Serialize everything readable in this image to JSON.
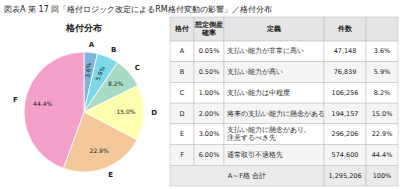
{
  "title": "図表A  第 17 回「格付ロジック改定によるRM格付変動の影響」／格付分布",
  "chart_data": {
    "type": "pie",
    "title": "格付分布",
    "categories": [
      "A",
      "B",
      "C",
      "D",
      "E",
      "F"
    ],
    "values": [
      3.6,
      5.9,
      8.2,
      15.0,
      22.9,
      44.4
    ],
    "value_labels": [
      "3.6%",
      "5.9%",
      "8.2%",
      "15.0%",
      "22.9%",
      "44.4%"
    ],
    "colors": [
      "#7EB4D9",
      "#7DD9E8",
      "#A8DBC5",
      "#FFFFB0",
      "#F5C89A",
      "#F5A0C8"
    ],
    "data_labels": true
  },
  "table": {
    "columns": [
      "格付",
      "想定倒産\n確率",
      "定義",
      "件数",
      null
    ],
    "rows": [
      [
        "A",
        "0.05%",
        "支払い能力が非常に高い",
        "47,148",
        "3.6%"
      ],
      [
        "B",
        "0.50%",
        "支払い能力が高い",
        "76,839",
        "5.9%"
      ],
      [
        "C",
        "1.00%",
        "支払い能力は中程度",
        "106,256",
        "8.2%"
      ],
      [
        "D",
        "2.00%",
        "将来の支払い能力に懸念がある",
        "194,157",
        "15.0%"
      ],
      [
        "E",
        "3.00%",
        "支払い能力に懸念があり,\n注意するべき先",
        "296,206",
        "22.9%"
      ],
      [
        "F",
        "6.00%",
        "通常取引不適格先",
        "574,600",
        "44.4%"
      ],
      [
        "A～F格  合計",
        null,
        null,
        "1,295,206",
        "100%"
      ]
    ]
  }
}
